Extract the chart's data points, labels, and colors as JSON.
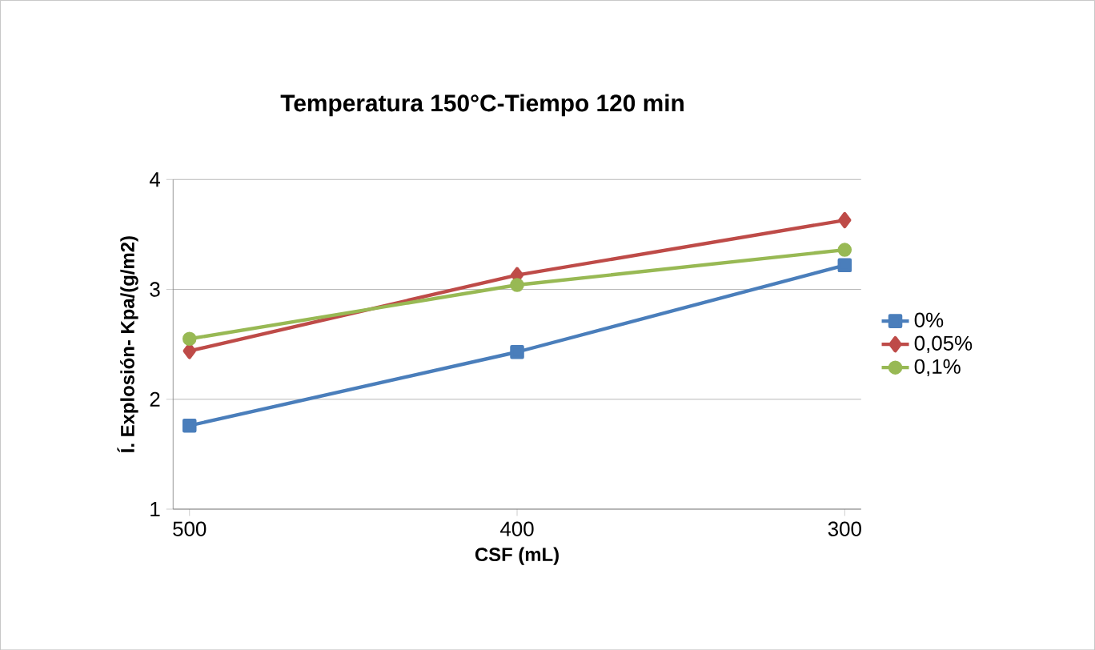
{
  "chart_data": {
    "type": "line",
    "title": "Temperatura 150°C-Tiempo 120 min",
    "xlabel": "CSF (mL)",
    "ylabel": "Í. Explosión- Kpa/(g/m2)",
    "categories": [
      "500",
      "400",
      "300"
    ],
    "series": [
      {
        "name": "0%",
        "color": "#4a7ebb",
        "marker": "square",
        "values": [
          1.76,
          2.43,
          3.22
        ]
      },
      {
        "name": "0,05%",
        "color": "#be4b48",
        "marker": "diamond",
        "values": [
          2.44,
          3.13,
          3.63
        ]
      },
      {
        "name": "0,1%",
        "color": "#98b954",
        "marker": "circle",
        "values": [
          2.55,
          3.04,
          3.36
        ]
      }
    ],
    "ylim": [
      1,
      4
    ],
    "yticks": [
      1,
      2,
      3,
      4
    ],
    "grid": "y",
    "legend": "right",
    "line_style": "solid"
  }
}
